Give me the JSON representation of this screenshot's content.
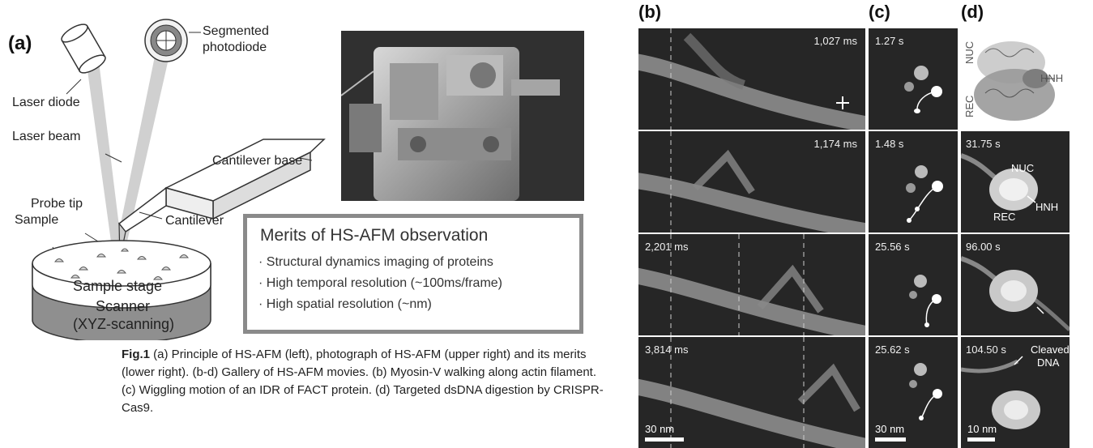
{
  "panel_a": {
    "letter": "(a)",
    "labels": {
      "segmented_photodiode_1": "Segmented",
      "segmented_photodiode_2": "photodiode",
      "laser_diode": "Laser diode",
      "laser_beam": "Laser beam",
      "cantilever_base": "Cantilever base",
      "probe_tip": "Probe tip",
      "cantilever": "Cantilever",
      "sample": "Sample",
      "sample_stage": "Sample stage",
      "scanner": "Scanner",
      "scanner_sub": "(XYZ-scanning)"
    },
    "merits": {
      "title": "Merits of HS-AFM observation",
      "items": [
        "· Structural dynamics imaging of proteins",
        "· High temporal resolution (~100ms/frame)",
        "· High spatial resolution (~nm)"
      ]
    }
  },
  "caption": {
    "label": "Fig.1",
    "text": " (a) Principle of HS-AFM (left), photograph of HS-AFM (upper right) and its merits (lower right). (b-d) Gallery of HS-AFM movies. (b) Myosin-V walking along actin filament. (c) Wiggling motion of an IDR of FACT protein. (d) Targeted dsDNA digestion by CRISPR-Cas9."
  },
  "panel_b": {
    "letter": "(b)",
    "frames": [
      "1,027 ms",
      "1,174 ms",
      "2,201 ms",
      "3,814 ms"
    ],
    "scale": "30 nm"
  },
  "panel_c": {
    "letter": "(c)",
    "frames": [
      "1.27 s",
      "1.48 s",
      "25.56 s",
      "25.62 s"
    ],
    "scale": "30 nm"
  },
  "panel_d": {
    "letter": "(d)",
    "structure_labels": {
      "nuc": "NUC",
      "rec": "REC",
      "hnh": "HNH"
    },
    "frames": [
      "31.75 s",
      "96.00 s",
      "104.50 s"
    ],
    "frame1_labels": {
      "nuc": "NUC",
      "rec": "REC",
      "hnh": "HNH"
    },
    "cleaved_1": "Cleaved",
    "cleaved_2": "DNA",
    "scale": "10 nm"
  }
}
